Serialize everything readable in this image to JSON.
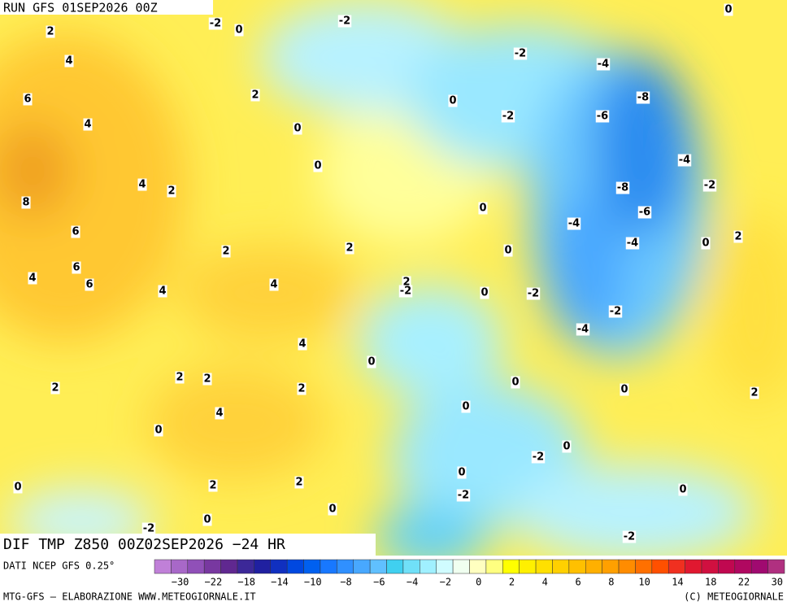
{
  "header": {
    "run": "RUN GFS 01SEP2026 00Z"
  },
  "map": {
    "labels": [
      "-2",
      "0",
      "-2",
      "0",
      "2",
      "4",
      "-2",
      "-4",
      "6",
      "2",
      "0",
      "-8",
      "4",
      "0",
      "-2",
      "-6",
      "0",
      "-4",
      "4",
      "2",
      "-8",
      "-2",
      "8",
      "0",
      "-6",
      "-4",
      "6",
      "0",
      "2",
      "-4",
      "2",
      "2",
      "0",
      "6",
      "4",
      "6",
      "4",
      "4",
      "2",
      "-2",
      "0",
      "-2",
      "-2",
      "-4",
      "4",
      "0",
      "0",
      "2",
      "2",
      "2",
      "2",
      "0",
      "2",
      "0",
      "4",
      "0",
      "0",
      "-2",
      "0",
      "0",
      "2",
      "2",
      "0",
      "-2",
      "0",
      "0",
      "-2",
      "-2"
    ]
  },
  "footer": {
    "title": "DIF TMP Z850 00Z02SEP2026 −24 HR",
    "source": "DATI NCEP GFS 0.25°"
  },
  "legend": {
    "colors": [
      "#c080d8",
      "#a868c8",
      "#9050b8",
      "#7838a0",
      "#602890",
      "#3c2898",
      "#2020a0",
      "#1030c0",
      "#0048e0",
      "#0060f0",
      "#1878ff",
      "#3090ff",
      "#48a8ff",
      "#60c0ff",
      "#40d0f0",
      "#70e0f8",
      "#a0f0ff",
      "#d0fcff",
      "#f0fff0",
      "#ffffc0",
      "#ffff80",
      "#ffff00",
      "#fff000",
      "#ffe000",
      "#ffd000",
      "#ffc000",
      "#ffb000",
      "#ffa000",
      "#ff8c00",
      "#ff7000",
      "#ff5000",
      "#f03020",
      "#e01830",
      "#d01040",
      "#c00850",
      "#b00860",
      "#a00a70",
      "#b03080"
    ],
    "labels": [
      "−30",
      "−22",
      "−18",
      "−14",
      "−10",
      "−8",
      "−6",
      "−4",
      "−2",
      "0",
      "2",
      "4",
      "6",
      "8",
      "10",
      "14",
      "18",
      "22",
      "30"
    ]
  },
  "credits": {
    "left": "MTG-GFS — ELABORAZIONE WWW.METEOGIORNALE.IT",
    "right": "(C) METEOGIORNALE"
  }
}
